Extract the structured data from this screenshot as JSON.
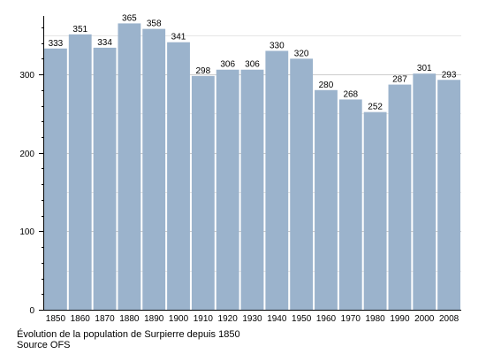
{
  "chart_data": {
    "type": "bar",
    "categories": [
      "1850",
      "1860",
      "1870",
      "1880",
      "1890",
      "1900",
      "1910",
      "1920",
      "1930",
      "1940",
      "1950",
      "1960",
      "1970",
      "1980",
      "1990",
      "2000",
      "2008"
    ],
    "values": [
      333,
      351,
      334,
      365,
      358,
      341,
      298,
      306,
      306,
      330,
      320,
      280,
      268,
      252,
      287,
      301,
      293
    ],
    "yticks": [
      0,
      100,
      200,
      300
    ],
    "ylim": [
      0,
      370
    ],
    "bar_color": "#9bb3cc",
    "grid": true
  },
  "captions": {
    "line1": "Évolution de la population de Surpierre depuis 1850",
    "line2": "Source OFS"
  }
}
